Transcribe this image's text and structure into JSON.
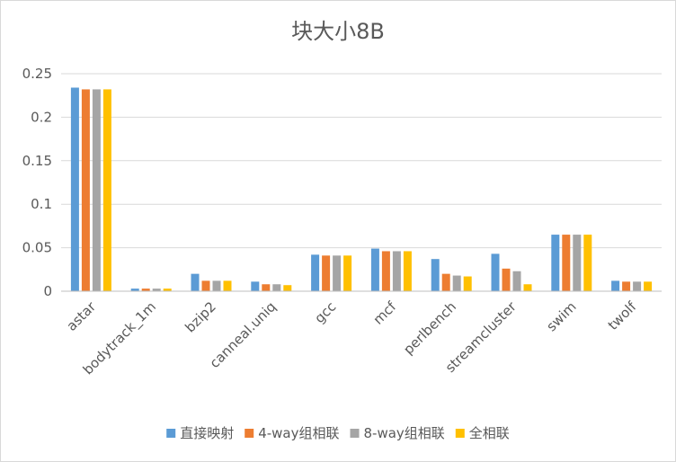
{
  "chart_data": {
    "type": "bar",
    "title": "块大小8B",
    "xlabel": "",
    "ylabel": "",
    "ylim": [
      0,
      0.25
    ],
    "yticks": [
      "0",
      "0.05",
      "0.1",
      "0.15",
      "0.2",
      "0.25"
    ],
    "grid": true,
    "legend_position": "bottom",
    "categories": [
      "astar",
      "bodytrack_1m",
      "bzip2",
      "canneal.uniq",
      "gcc",
      "mcf",
      "perlbench",
      "streamcluster",
      "swim",
      "twolf"
    ],
    "series": [
      {
        "name": "直接映射",
        "color": "#5b9bd5",
        "values": [
          0.234,
          0.003,
          0.02,
          0.011,
          0.042,
          0.049,
          0.037,
          0.043,
          0.065,
          0.012
        ]
      },
      {
        "name": "4-way组相联",
        "color": "#ed7d31",
        "values": [
          0.232,
          0.003,
          0.012,
          0.008,
          0.041,
          0.046,
          0.02,
          0.026,
          0.065,
          0.011
        ]
      },
      {
        "name": "8-way组相联",
        "color": "#a5a5a5",
        "values": [
          0.232,
          0.003,
          0.012,
          0.008,
          0.041,
          0.046,
          0.018,
          0.023,
          0.065,
          0.011
        ]
      },
      {
        "name": "全相联",
        "color": "#ffc000",
        "values": [
          0.232,
          0.003,
          0.012,
          0.007,
          0.041,
          0.046,
          0.017,
          0.008,
          0.065,
          0.011
        ]
      }
    ]
  }
}
